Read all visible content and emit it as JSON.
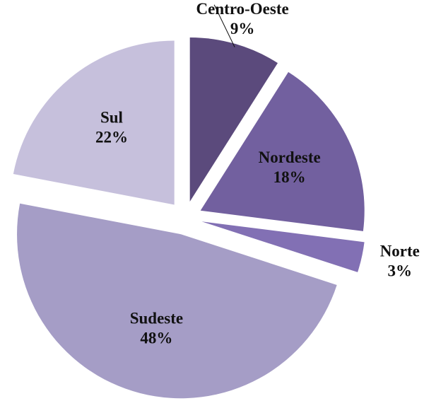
{
  "chart_data": {
    "type": "pie",
    "categories": [
      "Centro-Oeste",
      "Nordeste",
      "Norte",
      "Sudeste",
      "Sul"
    ],
    "values": [
      9,
      18,
      3,
      48,
      22
    ],
    "value_labels": [
      "9%",
      "18%",
      "3%",
      "48%",
      "22%"
    ],
    "colors": [
      "#5b4a7c",
      "#72609f",
      "#8270b4",
      "#a59dc6",
      "#c6c0dc"
    ]
  }
}
